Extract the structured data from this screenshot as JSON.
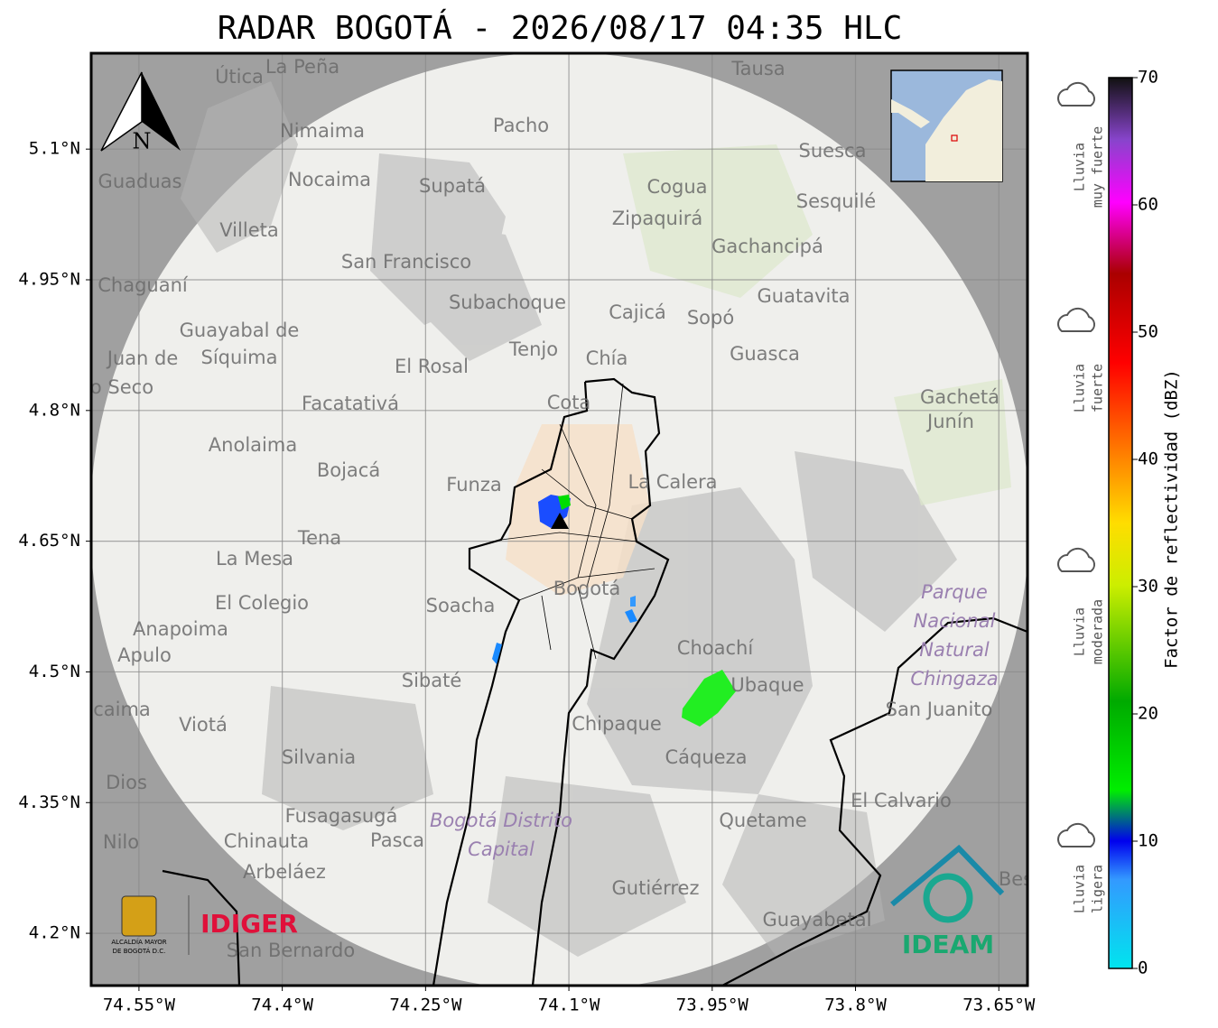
{
  "title": "RADAR BOGOTÁ - 2026/08/17 04:35 HLC",
  "map": {
    "xlim": [
      -74.6,
      -73.62
    ],
    "ylim": [
      4.14,
      5.21
    ],
    "xticks": [
      {
        "value": -74.55,
        "label": "74.55°W"
      },
      {
        "value": -74.4,
        "label": "74.4°W"
      },
      {
        "value": -74.25,
        "label": "74.25°W"
      },
      {
        "value": -74.1,
        "label": "74.1°W"
      },
      {
        "value": -73.95,
        "label": "73.95°W"
      },
      {
        "value": -73.8,
        "label": "73.8°W"
      },
      {
        "value": -73.65,
        "label": "73.65°W"
      }
    ],
    "yticks": [
      {
        "value": 5.1,
        "label": "5.1°N"
      },
      {
        "value": 4.95,
        "label": "4.95°N"
      },
      {
        "value": 4.8,
        "label": "4.8°N"
      },
      {
        "value": 4.65,
        "label": "4.65°N"
      },
      {
        "value": 4.5,
        "label": "4.5°N"
      },
      {
        "value": 4.35,
        "label": "4.35°N"
      },
      {
        "value": 4.2,
        "label": "4.2°N"
      }
    ],
    "grid": true,
    "north": "N",
    "places": [
      "La Peña",
      "Útica",
      "Tausa",
      "Pacho",
      "Nimaima",
      "Suesca",
      "Guaduas",
      "Nocaima",
      "Supatá",
      "Cogua",
      "Zipaquirá",
      "Sesquilé",
      "Villeta",
      "San Francisco",
      "Gachancipá",
      "Chaguaní",
      "Guatavita",
      "Subachoque",
      "Cajicá",
      "Sopó",
      "Guayabal de",
      "Síquima",
      "Tenjo",
      "Guasca",
      "Chía",
      "Juan de",
      "o Seco",
      "El Rosal",
      "Cota",
      "Gachetá",
      "Junín",
      "Facatativá",
      "Anolaima",
      "Bojacá",
      "La Calera",
      "Funza",
      "Tena",
      "La Mesa",
      "Bogotá",
      "Soacha",
      "El Colegio",
      "Anapoima",
      "Apulo",
      "Choachí",
      "Ubaque",
      "Sibaté",
      "San Juanito",
      "Viotá",
      "caima",
      "Chipaque",
      "Silvania",
      "Cáqueza",
      "Dios",
      "El Calvario",
      "Fusagasugá",
      "Quetame",
      "Nilo",
      "Chinauta",
      "Pasca",
      "Arbeláez",
      "Gutiérrez",
      "Guayabetal",
      "San Bernardo",
      "Bes"
    ],
    "areas": [
      "Parque",
      "Nacional",
      "Natural",
      "Chingaza",
      "Bogotá Distrito",
      "Capital"
    ]
  },
  "colorbar": {
    "label": "Factor de reflectividad (dBZ)",
    "clim": [
      0,
      70
    ],
    "ticks": [
      0,
      10,
      20,
      30,
      40,
      50,
      60,
      70
    ],
    "categories": [
      [
        "Lluvia",
        "muy fuerte"
      ],
      [
        "Lluvia",
        "fuerte"
      ],
      [
        "Lluvia",
        "moderada"
      ],
      [
        "Lluvia",
        "ligera"
      ]
    ]
  },
  "logos": {
    "alcaldia": [
      "ALCALDÍA MAYOR",
      "DE BOGOTÁ D.C."
    ],
    "idiger": "IDIGER",
    "ideam": "IDEAM"
  }
}
